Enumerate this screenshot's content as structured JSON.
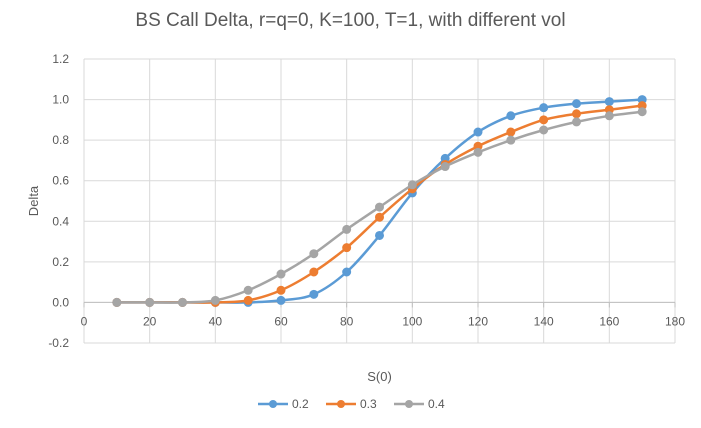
{
  "chart_data": {
    "type": "line",
    "title": "BS Call Delta, r=q=0,  K=100, T=1, with different vol",
    "xlabel": "S(0)",
    "ylabel": "Delta",
    "xlim": [
      0,
      180
    ],
    "ylim": [
      -0.2,
      1.2
    ],
    "xticks": [
      "0",
      "20",
      "40",
      "60",
      "80",
      "100",
      "120",
      "140",
      "160",
      "180"
    ],
    "yticks": [
      "-0.2",
      "0.0",
      "0.2",
      "0.4",
      "0.6",
      "0.8",
      "1.0",
      "1.2"
    ],
    "grid": true,
    "legend_position": "bottom",
    "x": [
      10,
      20,
      30,
      40,
      50,
      60,
      70,
      80,
      90,
      100,
      110,
      120,
      130,
      140,
      150,
      160,
      170
    ],
    "series": [
      {
        "name": "0.2",
        "color": "#5b9bd5",
        "values": [
          0.0,
          0.0,
          0.0,
          0.0,
          0.0,
          0.01,
          0.04,
          0.15,
          0.33,
          0.54,
          0.71,
          0.84,
          0.92,
          0.96,
          0.98,
          0.99,
          1.0
        ]
      },
      {
        "name": "0.3",
        "color": "#ed7d31",
        "values": [
          0.0,
          0.0,
          0.0,
          0.0,
          0.01,
          0.06,
          0.15,
          0.27,
          0.42,
          0.56,
          0.68,
          0.77,
          0.84,
          0.9,
          0.93,
          0.95,
          0.97
        ]
      },
      {
        "name": "0.4",
        "color": "#a5a5a5",
        "values": [
          0.0,
          0.0,
          0.0,
          0.01,
          0.06,
          0.14,
          0.24,
          0.36,
          0.47,
          0.58,
          0.67,
          0.74,
          0.8,
          0.85,
          0.89,
          0.92,
          0.94
        ]
      }
    ]
  }
}
